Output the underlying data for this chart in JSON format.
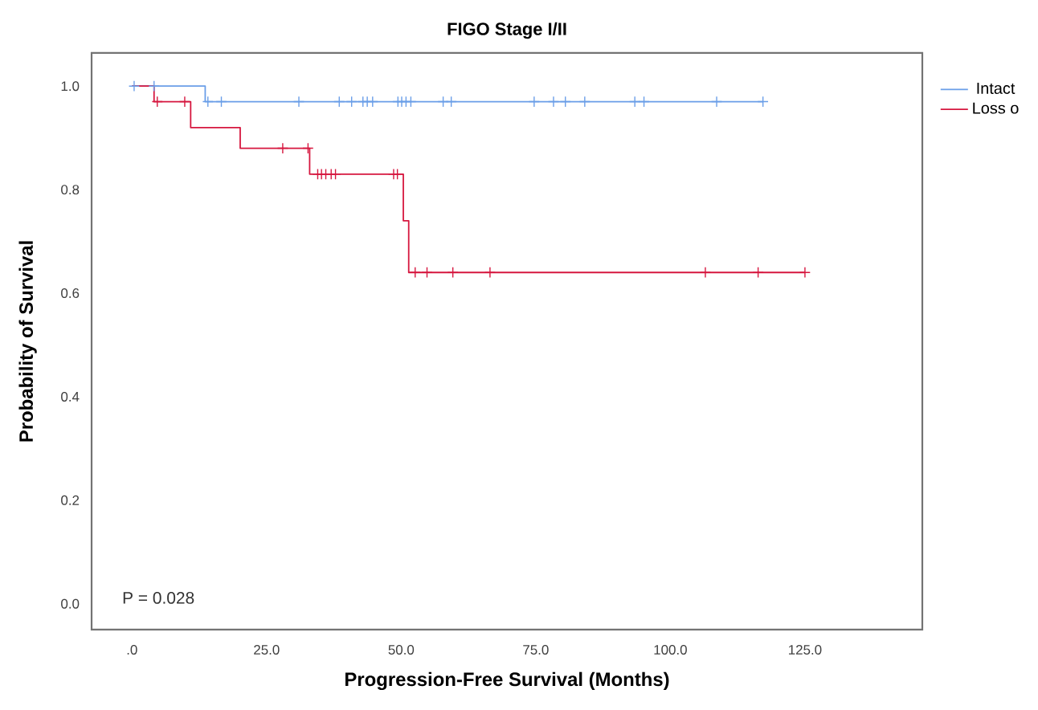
{
  "chart_data": {
    "type": "step",
    "title": "FIGO Stage I/II",
    "xlabel": "Progression-Free Survival (Months)",
    "ylabel": "Probability of Survival",
    "xlim": [
      -7.5,
      146.8
    ],
    "ylim": [
      -0.05,
      1.064
    ],
    "xticks": [
      {
        "value": 0,
        "label": ".0"
      },
      {
        "value": 25,
        "label": "25.0"
      },
      {
        "value": 50,
        "label": "50.0"
      },
      {
        "value": 75,
        "label": "75.0"
      },
      {
        "value": 100,
        "label": "100.0"
      },
      {
        "value": 125,
        "label": "125.0"
      }
    ],
    "yticks": [
      {
        "value": 0,
        "label": "0.0"
      },
      0.2,
      0.4,
      0.6,
      0.8,
      {
        "value": 1,
        "label": "1.0"
      }
    ],
    "grid": false,
    "legend": "right",
    "annotations": [
      "P = 0.028"
    ],
    "series": [
      {
        "name": "Intact",
        "color": "#6a9ee8",
        "x": [
          0,
          13.6,
          117.2
        ],
        "values": [
          1,
          0.97,
          0.97
        ]
      },
      {
        "name": "Loss o",
        "color": "#d6173f",
        "x": [
          0,
          4.1,
          10.9,
          20.1,
          33.0,
          50.4,
          51.4,
          125.0
        ],
        "values": [
          1,
          0.97,
          0.92,
          0.88,
          0.83,
          0.74,
          0.64,
          0.64
        ]
      },
      {
        "type": "scatter",
        "marker": "cross",
        "color": "#6a9ee8",
        "x": [
          0.4,
          4.1,
          14.1,
          16.6,
          31.0,
          38.5,
          40.8,
          42.9,
          43.7,
          44.7,
          49.4,
          50.1,
          50.9,
          51.8,
          57.8,
          59.3,
          74.7,
          78.3,
          80.5,
          84.1,
          93.4,
          95.1,
          108.6,
          117.2
        ],
        "values": [
          1,
          1,
          0.97,
          0.97,
          0.97,
          0.97,
          0.97,
          0.97,
          0.97,
          0.97,
          0.97,
          0.97,
          0.97,
          0.97,
          0.97,
          0.97,
          0.97,
          0.97,
          0.97,
          0.97,
          0.97,
          0.97,
          0.97,
          0.97
        ]
      },
      {
        "type": "scatter",
        "marker": "cross",
        "color": "#d6173f",
        "x": [
          4.7,
          9.8,
          28.0,
          32.7,
          34.5,
          35.2,
          36.0,
          37.0,
          37.8,
          48.6,
          49.3,
          52.6,
          54.8,
          59.6,
          66.5,
          106.5,
          116.3,
          125.0
        ],
        "values": [
          0.97,
          0.97,
          0.88,
          0.88,
          0.83,
          0.83,
          0.83,
          0.83,
          0.83,
          0.83,
          0.83,
          0.64,
          0.64,
          0.64,
          0.64,
          0.64,
          0.64,
          0.64
        ]
      }
    ]
  }
}
